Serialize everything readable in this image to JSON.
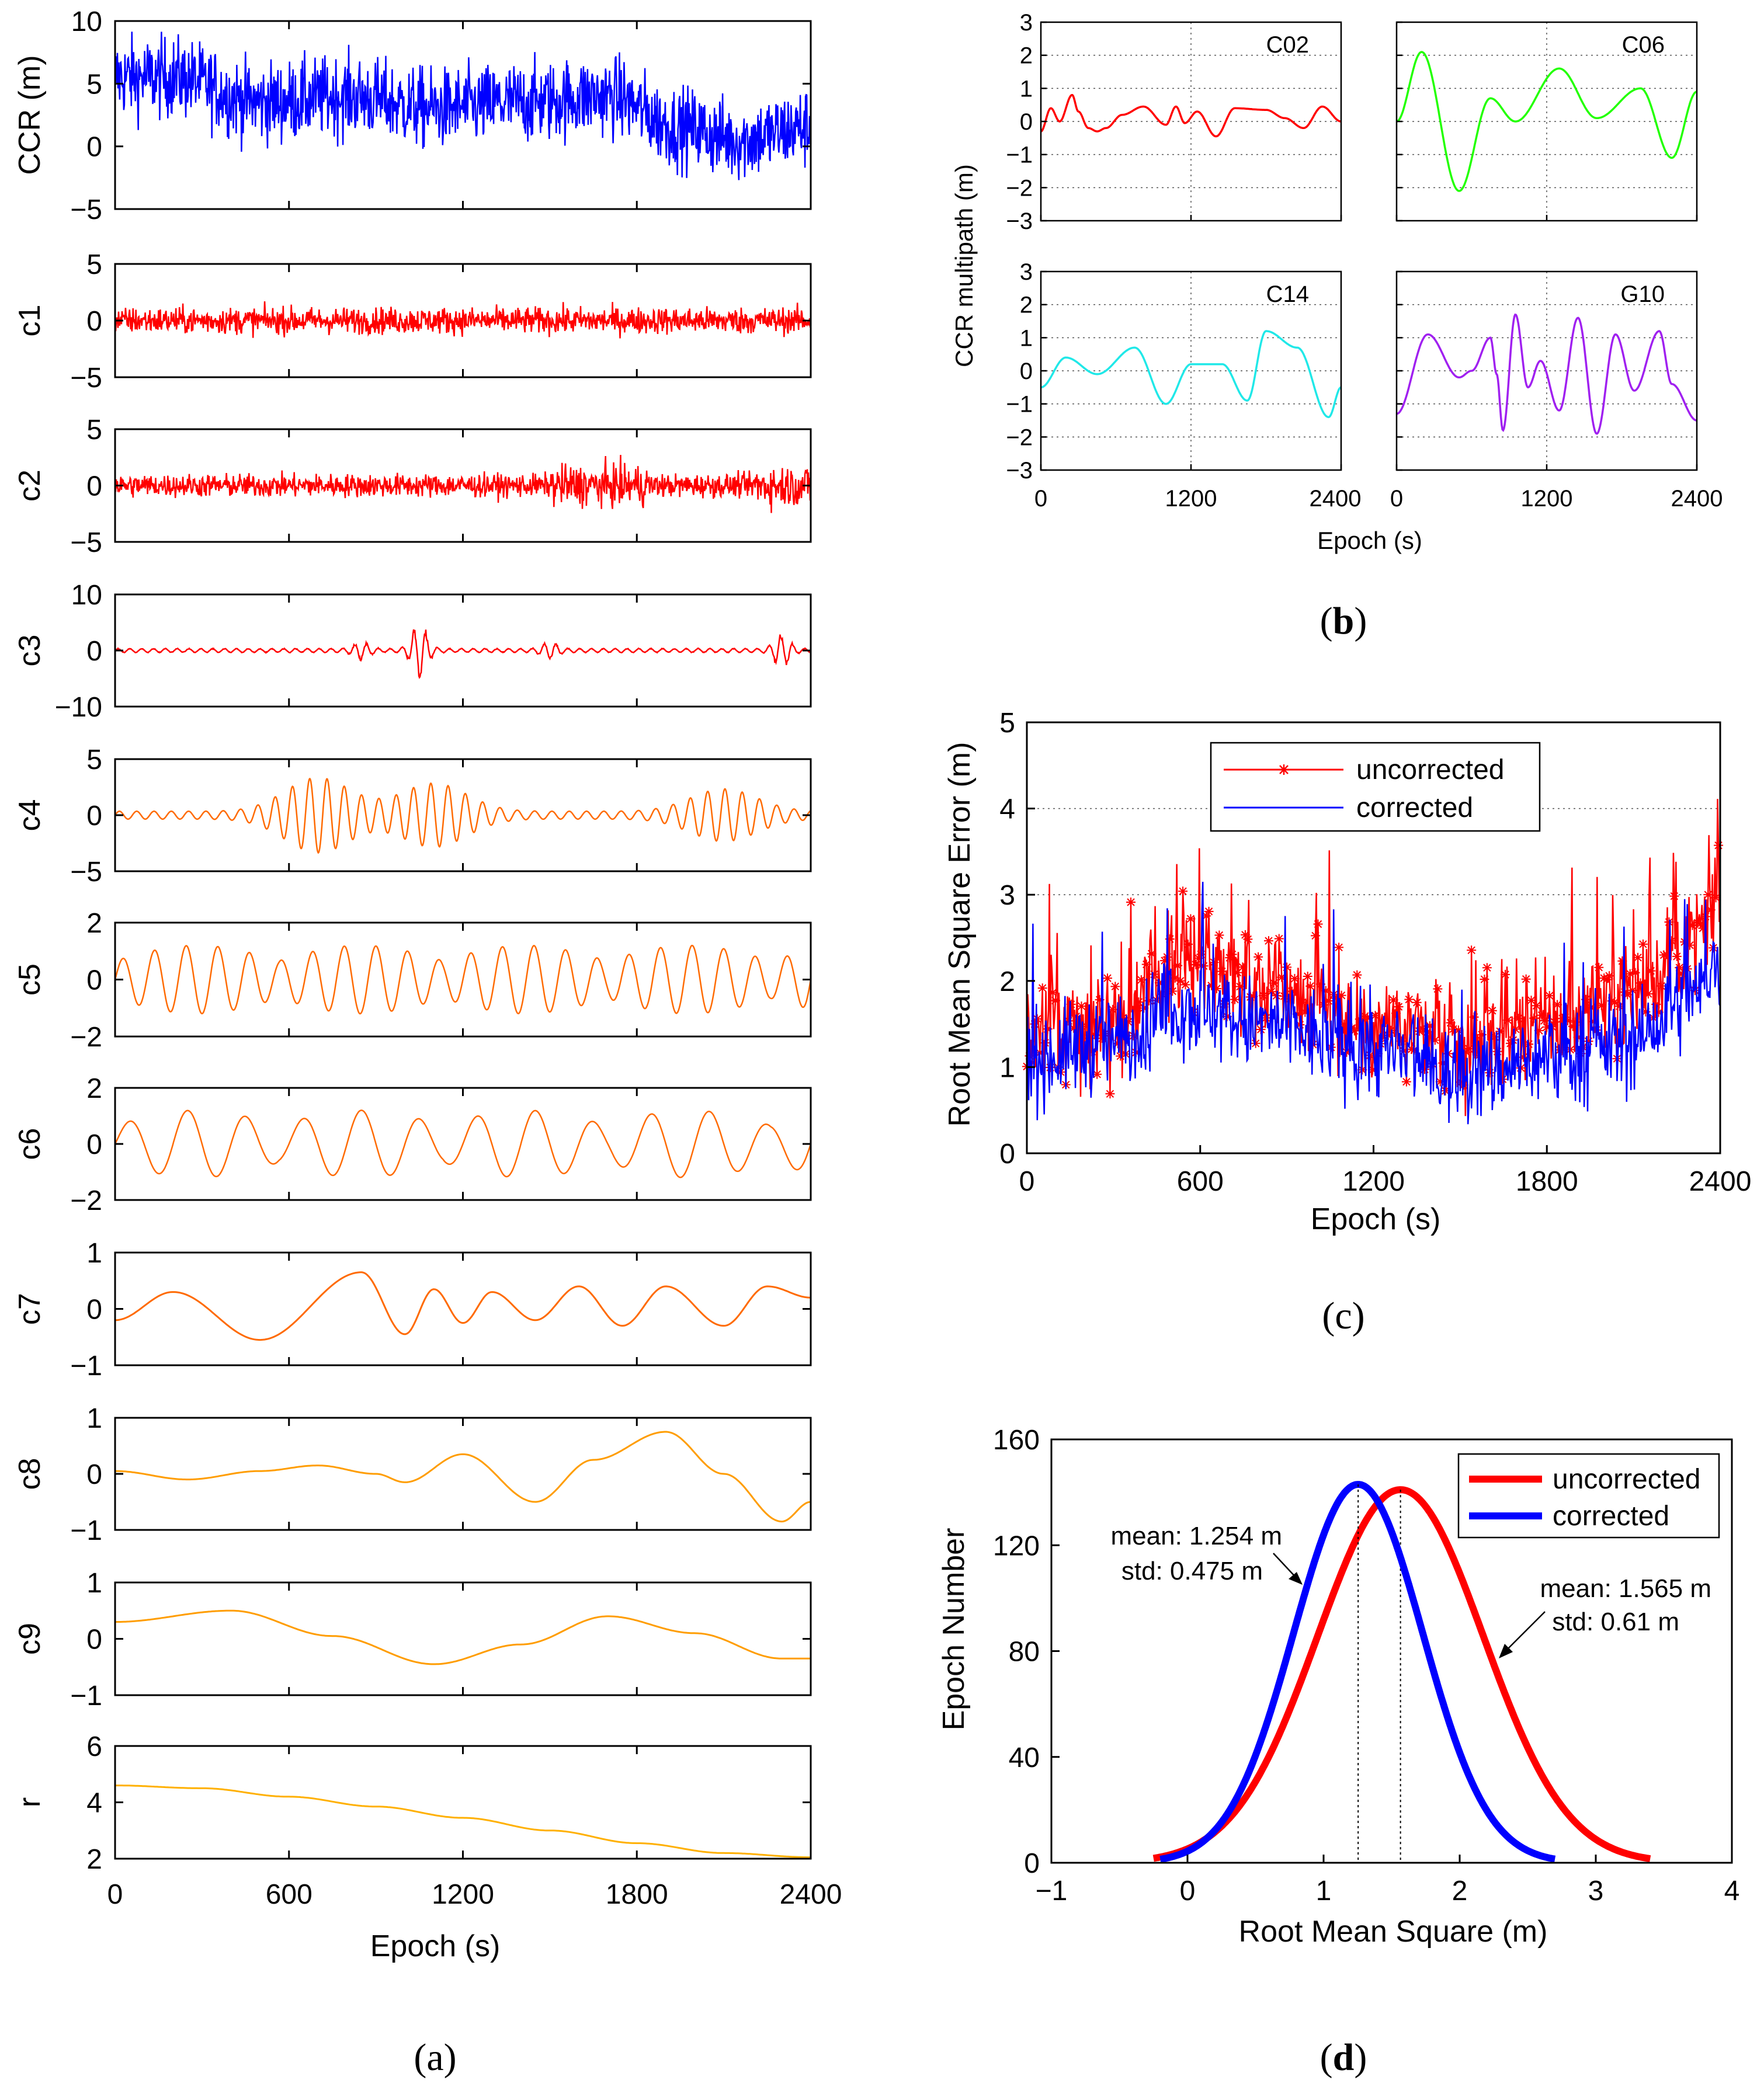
{
  "panels": {
    "a": {
      "label_open": "(",
      "label_letter": "a",
      "label_close": ")"
    },
    "b": {
      "label_open": "(",
      "label_letter": "b",
      "label_close": ")"
    },
    "c": {
      "label_open": "(",
      "label_letter": "c",
      "label_close": ")"
    },
    "d": {
      "label_open": "(",
      "label_letter": "d",
      "label_close": ")"
    }
  },
  "colors": {
    "blue": "#0000ff",
    "red": "#ff0000",
    "orange": "#ff6a00",
    "amber": "#ff9d00",
    "yellow": "#ffb000",
    "green": "#22ff00",
    "cyan": "#20e8e8",
    "purple": "#a020f0",
    "axis": "#000000",
    "grid": "#555555"
  },
  "chart_data": [
    {
      "id": "a",
      "type": "line",
      "title": "",
      "xlabel": "Epoch (s)",
      "xlim": [
        0,
        2400
      ],
      "xticks": [
        "0",
        "600",
        "1200",
        "1800",
        "2400"
      ],
      "series": [
        {
          "name": "CCR (m)",
          "ylabel": "CCR (m)",
          "ylim": [
            -5,
            10
          ],
          "yticks": [
            "−5",
            "0",
            "5",
            "10"
          ],
          "color": "blue",
          "kind": "noisy",
          "mean": 3.0,
          "amplitude": 2.5,
          "description_values": [
            5.5,
            6,
            5,
            4,
            5,
            4,
            3,
            2,
            2,
            3,
            2,
            -1,
            1
          ]
        },
        {
          "name": "c1",
          "ylabel": "c1",
          "ylim": [
            -5,
            5
          ],
          "yticks": [
            "−5",
            "0",
            "5"
          ],
          "color": "red",
          "kind": "noise",
          "amplitude": 0.8
        },
        {
          "name": "c2",
          "ylabel": "c2",
          "ylim": [
            -5,
            5
          ],
          "yticks": [
            "−5",
            "0",
            "5"
          ],
          "color": "red",
          "kind": "noise",
          "amplitude": 0.7
        },
        {
          "name": "c3",
          "ylabel": "c3",
          "ylim": [
            -10,
            10
          ],
          "yticks": [
            "−10",
            "0",
            "10"
          ],
          "color": "red",
          "kind": "bursts",
          "bursts": [
            [
              1050,
              5
            ],
            [
              2300,
              3
            ],
            [
              1500,
              1.5
            ],
            [
              850,
              1.5
            ]
          ]
        },
        {
          "name": "c4",
          "ylabel": "c4",
          "ylim": [
            -5,
            5
          ],
          "yticks": [
            "−5",
            "0",
            "5"
          ],
          "color": "orange",
          "kind": "am",
          "peak_epochs": [
            700,
            1100,
            2100
          ],
          "peak_amplitudes": [
            3,
            2.5,
            2
          ]
        },
        {
          "name": "c5",
          "ylabel": "c5",
          "ylim": [
            -2,
            2
          ],
          "yticks": [
            "−2",
            "0",
            "2"
          ],
          "color": "orange",
          "kind": "osc",
          "amplitude": 1.2,
          "periods": 22
        },
        {
          "name": "c6",
          "ylabel": "c6",
          "ylim": [
            -2,
            2
          ],
          "yticks": [
            "−2",
            "0",
            "2"
          ],
          "color": "orange",
          "kind": "osc",
          "amplitude": 1.2,
          "periods": 12
        },
        {
          "name": "c7",
          "ylabel": "c7",
          "ylim": [
            -1,
            1
          ],
          "yticks": [
            "−1",
            "0",
            "1"
          ],
          "color": "orange",
          "kind": "points",
          "x": [
            0,
            200,
            500,
            850,
            1000,
            1100,
            1200,
            1300,
            1450,
            1600,
            1750,
            1900,
            2100,
            2250,
            2400
          ],
          "y": [
            -0.2,
            0.3,
            -0.55,
            0.65,
            -0.45,
            0.35,
            -0.25,
            0.3,
            -0.2,
            0.4,
            -0.3,
            0.4,
            -0.3,
            0.4,
            0.2
          ]
        },
        {
          "name": "c8",
          "ylabel": "c8",
          "ylim": [
            -1,
            1
          ],
          "yticks": [
            "−1",
            "0",
            "1"
          ],
          "color": "amber",
          "kind": "points",
          "x": [
            0,
            250,
            500,
            700,
            900,
            1000,
            1200,
            1450,
            1650,
            1900,
            2100,
            2300,
            2400
          ],
          "y": [
            0.05,
            -0.1,
            0.05,
            0.15,
            0.0,
            -0.15,
            0.35,
            -0.5,
            0.25,
            0.75,
            0.0,
            -0.85,
            -0.5
          ]
        },
        {
          "name": "c9",
          "ylabel": "c9",
          "ylim": [
            -1,
            1
          ],
          "yticks": [
            "−1",
            "0",
            "1"
          ],
          "color": "amber",
          "kind": "points",
          "x": [
            0,
            400,
            750,
            1100,
            1400,
            1700,
            2000,
            2300,
            2400
          ],
          "y": [
            0.3,
            0.5,
            0.05,
            -0.45,
            -0.1,
            0.4,
            0.1,
            -0.35,
            -0.35
          ]
        },
        {
          "name": "r",
          "ylabel": "r",
          "ylim": [
            2,
            6
          ],
          "yticks": [
            "2",
            "4",
            "6"
          ],
          "color": "yellow",
          "kind": "points",
          "x": [
            0,
            300,
            600,
            900,
            1200,
            1500,
            1800,
            2100,
            2400
          ],
          "y": [
            4.6,
            4.5,
            4.2,
            3.85,
            3.45,
            3.0,
            2.55,
            2.2,
            2.05
          ]
        }
      ]
    },
    {
      "id": "b",
      "type": "line",
      "title": "",
      "xlabel": "Epoch (s)",
      "ylabel": "CCR multipath (m)",
      "xlim": [
        0,
        2400
      ],
      "xticks_left": [
        "0",
        "1200",
        "2400"
      ],
      "xticks_right": [
        "0",
        "1200",
        "2400"
      ],
      "ylim": [
        -3,
        3
      ],
      "yticks": [
        "−3",
        "−2",
        "−1",
        "0",
        "1",
        "2",
        "3"
      ],
      "series": [
        {
          "name": "C02",
          "color": "red",
          "x": [
            0,
            80,
            150,
            250,
            300,
            380,
            450,
            520,
            650,
            820,
            1000,
            1080,
            1150,
            1250,
            1400,
            1550,
            1800,
            1950,
            2100,
            2250,
            2400
          ],
          "y": [
            -0.3,
            0.4,
            0.0,
            0.8,
            0.3,
            -0.2,
            -0.3,
            -0.2,
            0.2,
            0.45,
            -0.1,
            0.45,
            -0.05,
            0.3,
            -0.45,
            0.4,
            0.35,
            0.1,
            -0.2,
            0.45,
            0.0
          ]
        },
        {
          "name": "C06",
          "color": "green",
          "x": [
            0,
            200,
            500,
            750,
            950,
            1300,
            1600,
            1950,
            2200,
            2400
          ],
          "y": [
            0.0,
            2.1,
            -2.1,
            0.7,
            0.0,
            1.6,
            0.1,
            1.0,
            -1.1,
            0.9
          ]
        },
        {
          "name": "C14",
          "color": "cyan",
          "x": [
            0,
            200,
            450,
            750,
            1000,
            1200,
            1450,
            1650,
            1800,
            2050,
            2300,
            2400
          ],
          "y": [
            -0.5,
            0.4,
            -0.1,
            0.7,
            -1.0,
            0.2,
            0.2,
            -0.9,
            1.2,
            0.7,
            -1.4,
            -0.5
          ]
        },
        {
          "name": "G10",
          "color": "purple",
          "x": [
            0,
            250,
            500,
            600,
            750,
            800,
            850,
            950,
            1050,
            1150,
            1300,
            1450,
            1600,
            1750,
            1900,
            2100,
            2200,
            2400
          ],
          "y": [
            -1.3,
            1.1,
            -0.2,
            0.0,
            1.0,
            -0.1,
            -1.8,
            1.7,
            -0.5,
            0.3,
            -1.2,
            1.6,
            -1.9,
            1.1,
            -0.6,
            1.2,
            -0.4,
            -1.5
          ]
        }
      ]
    },
    {
      "id": "c",
      "type": "line",
      "title": "",
      "xlabel": "Epoch (s)",
      "ylabel": "Root Mean Square Error (m)",
      "xlim": [
        0,
        2400
      ],
      "xticks": [
        "0",
        "600",
        "1200",
        "1800",
        "2400"
      ],
      "ylim": [
        0,
        5
      ],
      "yticks": [
        "0",
        "1",
        "2",
        "3",
        "4",
        "5"
      ],
      "legend": {
        "placement": "top-center",
        "uncorrected": "uncorrected",
        "corrected": "corrected"
      },
      "series": [
        {
          "name": "uncorrected",
          "color": "red",
          "marker": "*",
          "baseline_points_x": [
            0,
            300,
            550,
            800,
            1200,
            1500,
            1800,
            2100,
            2300,
            2400
          ],
          "baseline_points_y": [
            1.4,
            1.5,
            2.3,
            2.0,
            1.5,
            1.2,
            1.5,
            1.9,
            2.4,
            3.0
          ],
          "noise_amplitude": 0.6
        },
        {
          "name": "corrected",
          "color": "blue",
          "baseline_points_x": [
            0,
            300,
            550,
            800,
            1200,
            1500,
            1800,
            2100,
            2300,
            2400
          ],
          "baseline_points_y": [
            1.1,
            1.3,
            1.7,
            1.5,
            1.2,
            0.9,
            1.1,
            1.3,
            1.8,
            2.2
          ],
          "noise_amplitude": 0.55
        }
      ]
    },
    {
      "id": "d",
      "type": "line",
      "title": "",
      "xlabel": "Root Mean Square (m)",
      "ylabel": "Epoch Number",
      "xlim": [
        -1,
        4
      ],
      "xticks": [
        "−1",
        "0",
        "1",
        "2",
        "3",
        "4"
      ],
      "ylim": [
        0,
        160
      ],
      "yticks": [
        "0",
        "40",
        "80",
        "120",
        "160"
      ],
      "legend": {
        "placement": "top-right",
        "uncorrected": "uncorrected",
        "corrected": "corrected"
      },
      "series": [
        {
          "name": "uncorrected",
          "color": "red",
          "mean": 1.565,
          "std": 0.61,
          "peak": 141,
          "x_range": [
            -0.25,
            3.4
          ],
          "annotation_line1": "mean: 1.565 m",
          "annotation_line2": "std: 0.61 m"
        },
        {
          "name": "corrected",
          "color": "blue",
          "mean": 1.254,
          "std": 0.475,
          "peak": 143,
          "x_range": [
            -0.2,
            2.7
          ],
          "annotation_line1": "mean: 1.254 m",
          "annotation_line2": "std: 0.475 m"
        }
      ]
    }
  ]
}
